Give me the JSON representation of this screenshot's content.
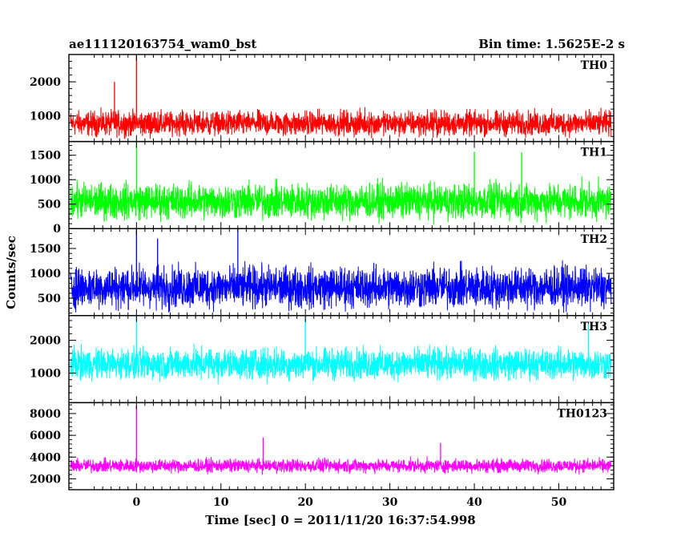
{
  "header": {
    "title": "ae111120163754_wam0_bst",
    "bin_time": "Bin time: 1.5625E-2 s"
  },
  "chart_data": {
    "type": "line",
    "title": "ae111120163754_wam0_bst",
    "xlabel": "Time [sec] 0 = 2011/11/20 16:37:54.998",
    "ylabel": "Counts/sec",
    "xlim": [
      -8,
      56.5
    ],
    "x_ticks": [
      0,
      10,
      20,
      30,
      40,
      50
    ],
    "x_tick_labels": [
      "0",
      "10",
      "20",
      "30",
      "40",
      "50"
    ],
    "data_x_range": [
      -7.8,
      56.2
    ],
    "grid": false,
    "series": [
      {
        "name": "TH0",
        "color": "#ff0000",
        "ylim": [
          250,
          2800
        ],
        "yticks": [
          1000,
          2000
        ],
        "ytick_labels": [
          "1000",
          "2000"
        ],
        "baseline": 780,
        "noise": 330,
        "spikes": [
          {
            "x": -2.6,
            "y": 2000
          },
          {
            "x": 0.0,
            "y": 2780
          }
        ]
      },
      {
        "name": "TH1",
        "color": "#00ff00",
        "ylim": [
          0,
          1780
        ],
        "yticks": [
          0,
          500,
          1000,
          1500
        ],
        "ytick_labels": [
          "0",
          "500",
          "1000",
          "1500"
        ],
        "baseline": 560,
        "noise": 330,
        "spikes": [
          {
            "x": 0.0,
            "y": 1780
          },
          {
            "x": 40.0,
            "y": 1570
          },
          {
            "x": 45.6,
            "y": 1560
          }
        ]
      },
      {
        "name": "TH2",
        "color": "#0000ff",
        "ylim": [
          150,
          1900
        ],
        "yticks": [
          500,
          1000,
          1500
        ],
        "ytick_labels": [
          "500",
          "1000",
          "1500"
        ],
        "baseline": 720,
        "noise": 380,
        "spikes": [
          {
            "x": 0.0,
            "y": 1890
          },
          {
            "x": 12.0,
            "y": 1890
          },
          {
            "x": 2.5,
            "y": 1700
          }
        ]
      },
      {
        "name": "TH3",
        "color": "#00ffff",
        "ylim": [
          100,
          2750
        ],
        "yticks": [
          1000,
          2000
        ],
        "ytick_labels": [
          "1000",
          "2000"
        ],
        "baseline": 1280,
        "noise": 430,
        "spikes": [
          {
            "x": 0.0,
            "y": 2740
          },
          {
            "x": 20.0,
            "y": 2740
          },
          {
            "x": 53.5,
            "y": 2500
          }
        ]
      },
      {
        "name": "TH0123",
        "color": "#ff00ff",
        "ylim": [
          1000,
          9000
        ],
        "yticks": [
          2000,
          4000,
          6000,
          8000
        ],
        "ytick_labels": [
          "2000",
          "4000",
          "6000",
          "8000"
        ],
        "baseline": 3200,
        "noise": 560,
        "spikes": [
          {
            "x": 0.0,
            "y": 8700
          },
          {
            "x": 15.0,
            "y": 5800
          },
          {
            "x": 36.0,
            "y": 5300
          }
        ]
      }
    ]
  }
}
